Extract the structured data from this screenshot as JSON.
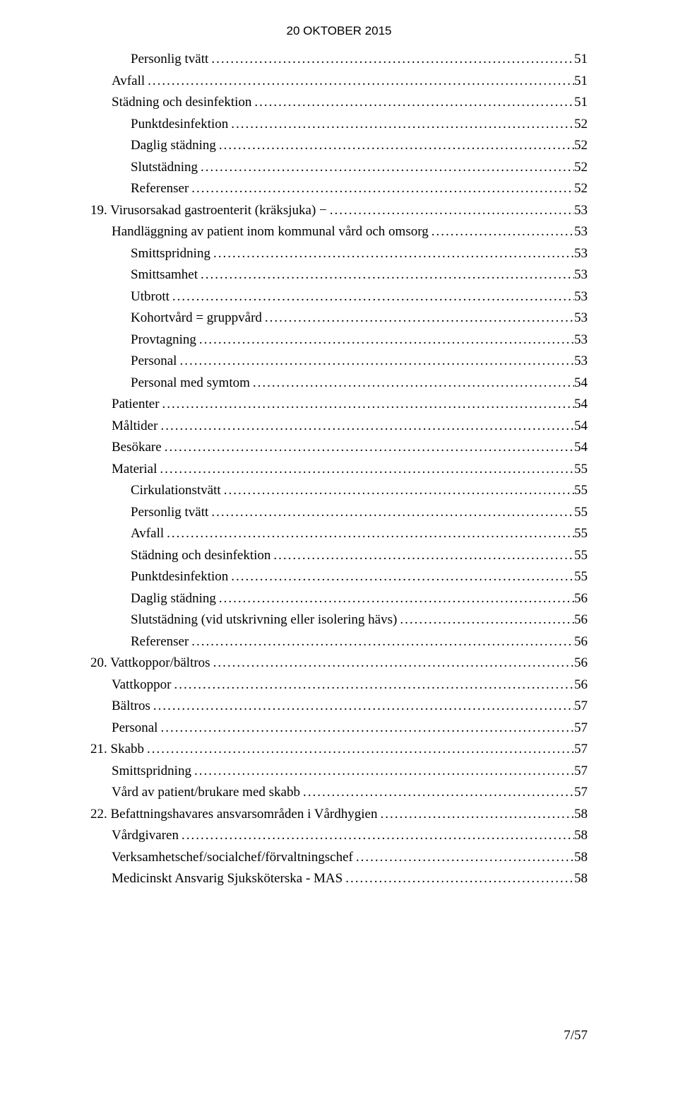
{
  "header": "20 OKTOBER 2015",
  "footer": "7/57",
  "toc": [
    {
      "label": "Personlig tvätt",
      "page": "51",
      "indent": 2
    },
    {
      "label": "Avfall",
      "page": "51",
      "indent": 1
    },
    {
      "label": "Städning och desinfektion",
      "page": "51",
      "indent": 1
    },
    {
      "label": "Punktdesinfektion",
      "page": "52",
      "indent": 2
    },
    {
      "label": "Daglig städning",
      "page": "52",
      "indent": 2
    },
    {
      "label": "Slutstädning",
      "page": "52",
      "indent": 2
    },
    {
      "label": "Referenser",
      "page": "52",
      "indent": 2
    },
    {
      "label": "19. Virusorsakad gastroenterit (kräksjuka) −",
      "page": "53",
      "indent": 0
    },
    {
      "label": "Handläggning av patient inom kommunal vård och omsorg",
      "page": "53",
      "indent": 1
    },
    {
      "label": "Smittspridning",
      "page": "53",
      "indent": 2
    },
    {
      "label": "Smittsamhet",
      "page": "53",
      "indent": 2
    },
    {
      "label": "Utbrott",
      "page": "53",
      "indent": 2
    },
    {
      "label": "Kohortvård = gruppvård",
      "page": "53",
      "indent": 2
    },
    {
      "label": "Provtagning",
      "page": "53",
      "indent": 2
    },
    {
      "label": "Personal",
      "page": "53",
      "indent": 2
    },
    {
      "label": "Personal med symtom",
      "page": "54",
      "indent": 2
    },
    {
      "label": "Patienter",
      "page": "54",
      "indent": 1
    },
    {
      "label": "Måltider",
      "page": "54",
      "indent": 1
    },
    {
      "label": "Besökare",
      "page": "54",
      "indent": 1
    },
    {
      "label": "Material",
      "page": "55",
      "indent": 1
    },
    {
      "label": "Cirkulationstvätt",
      "page": "55",
      "indent": 2
    },
    {
      "label": "Personlig tvätt",
      "page": "55",
      "indent": 2
    },
    {
      "label": "Avfall",
      "page": "55",
      "indent": 2
    },
    {
      "label": "Städning och desinfektion",
      "page": "55",
      "indent": 2
    },
    {
      "label": "Punktdesinfektion",
      "page": "55",
      "indent": 2
    },
    {
      "label": "Daglig städning",
      "page": "56",
      "indent": 2
    },
    {
      "label": "Slutstädning (vid utskrivning eller isolering hävs)",
      "page": "56",
      "indent": 2
    },
    {
      "label": "Referenser",
      "page": "56",
      "indent": 2
    },
    {
      "label": "20. Vattkoppor/bältros",
      "page": "56",
      "indent": 0
    },
    {
      "label": "Vattkoppor",
      "page": "56",
      "indent": 1
    },
    {
      "label": "Bältros",
      "page": "57",
      "indent": 1
    },
    {
      "label": "Personal",
      "page": "57",
      "indent": 1
    },
    {
      "label": "21. Skabb",
      "page": "57",
      "indent": 0
    },
    {
      "label": "Smittspridning",
      "page": "57",
      "indent": 1
    },
    {
      "label": "Vård av patient/brukare med skabb",
      "page": "57",
      "indent": 1
    },
    {
      "label": "22. Befattningshavares ansvarsområden i Vårdhygien",
      "page": "58",
      "indent": 0
    },
    {
      "label": "Vårdgivaren",
      "page": "58",
      "indent": 1
    },
    {
      "label": "Verksamhetschef/socialchef/förvaltningschef",
      "page": "58",
      "indent": 1
    },
    {
      "label": "Medicinskt Ansvarig Sjuksköterska - MAS",
      "page": "58",
      "indent": 1
    }
  ]
}
